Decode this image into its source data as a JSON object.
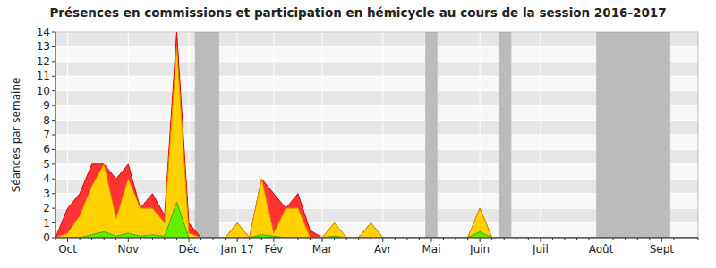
{
  "chart_data": {
    "type": "area",
    "title": "Présences en commissions et participation en hémicycle au cours de la session 2016-2017",
    "y_label": "Séances par semaine",
    "categories": [
      null,
      "Oct",
      null,
      null,
      null,
      null,
      "Nov",
      null,
      null,
      null,
      null,
      "Déc",
      null,
      null,
      null,
      "Jan 17",
      null,
      null,
      "Fév",
      null,
      null,
      null,
      "Mar",
      null,
      null,
      null,
      null,
      "Avr",
      null,
      null,
      null,
      "Mai",
      null,
      null,
      null,
      "Juin",
      null,
      null,
      null,
      null,
      "Juil",
      null,
      null,
      null,
      null,
      "Août",
      null,
      null,
      null,
      null,
      "Sept",
      null,
      null,
      null
    ],
    "series": [
      {
        "color": "#ff3333",
        "values": [
          0,
          2,
          3,
          5,
          5,
          4,
          5,
          2,
          3,
          1.5,
          14,
          1,
          0,
          0,
          0,
          1,
          0,
          4,
          3,
          2,
          3,
          0.5,
          0,
          1,
          0,
          0,
          1,
          0,
          0,
          0,
          0,
          0,
          0,
          0,
          0,
          2,
          0,
          0,
          0,
          0,
          0,
          0,
          0,
          0,
          0,
          0,
          0,
          0,
          0,
          0,
          0,
          0,
          0,
          0
        ]
      },
      {
        "color": "#ffd200",
        "values": [
          0,
          0.3,
          1.5,
          3.5,
          5,
          1.3,
          4,
          2,
          2,
          1,
          13,
          0.3,
          0,
          0,
          0,
          1,
          0,
          4,
          0.3,
          2,
          2,
          0,
          0,
          1,
          0,
          0,
          1,
          0,
          0,
          0,
          0,
          0,
          0,
          0,
          0,
          2,
          0,
          0,
          0,
          0,
          0,
          0,
          0,
          0,
          0,
          0,
          0,
          0,
          0,
          0,
          0,
          0,
          0,
          0
        ]
      },
      {
        "color": "#66ee00",
        "values": [
          0,
          0,
          0,
          0.2,
          0.4,
          0.1,
          0.3,
          0.1,
          0.2,
          0.1,
          2.4,
          0,
          0,
          0,
          0,
          0,
          0,
          0.2,
          0.1,
          0,
          0,
          0,
          0,
          0.1,
          0,
          0,
          0,
          0,
          0,
          0,
          0,
          0,
          0,
          0,
          0,
          0.4,
          0,
          0,
          0,
          0,
          0,
          0,
          0,
          0,
          0,
          0,
          0,
          0,
          0,
          0,
          0,
          0,
          0,
          0
        ]
      }
    ],
    "breaks": [
      [
        11.5,
        13.5
      ],
      [
        30.5,
        31.5
      ],
      [
        36.6,
        37.6
      ],
      [
        44.6,
        50.7
      ]
    ],
    "ylim": [
      0,
      14
    ],
    "yticks": [
      0,
      1,
      2,
      3,
      4,
      5,
      6,
      7,
      8,
      9,
      10,
      11,
      12,
      13,
      14
    ],
    "grid": true,
    "stacked": false
  }
}
